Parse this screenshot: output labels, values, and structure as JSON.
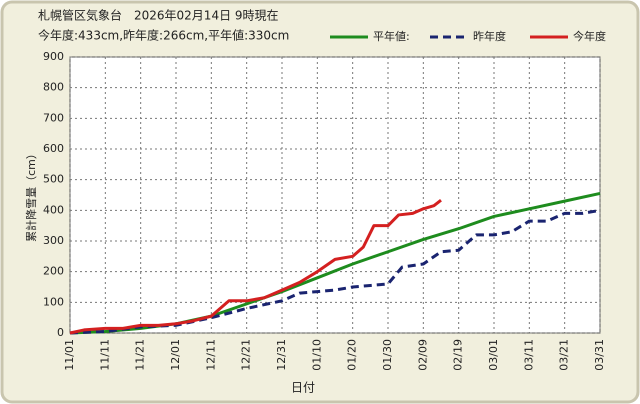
{
  "chart_data": {
    "type": "line",
    "title": "札幌管区気象台　2026年02月14日 9時現在",
    "subtitle": "今年度:433cm,昨年度:266cm,平年値:330cm",
    "x_label": "日付",
    "y_label": "累計降雪量（cm）",
    "xlim": [
      "11/01",
      "03/31"
    ],
    "xticks": [
      "11/01",
      "11/11",
      "11/21",
      "12/01",
      "12/11",
      "12/21",
      "12/31",
      "01/10",
      "01/20",
      "01/30",
      "02/09",
      "02/19",
      "03/01",
      "03/11",
      "03/21",
      "03/31"
    ],
    "ylim": [
      0,
      900
    ],
    "yticks": [
      0,
      100,
      200,
      300,
      400,
      500,
      600,
      700,
      800,
      900
    ],
    "grid": true,
    "series": [
      {
        "name": "平年値:",
        "color": "#1e8c1e",
        "dash": false,
        "x": [
          "11/01",
          "11/11",
          "11/21",
          "12/01",
          "12/11",
          "12/21",
          "12/31",
          "01/10",
          "01/20",
          "01/30",
          "02/09",
          "02/19",
          "03/01",
          "03/11",
          "03/21",
          "03/31"
        ],
        "values": [
          0,
          5,
          15,
          30,
          55,
          95,
          135,
          180,
          225,
          265,
          305,
          340,
          380,
          405,
          430,
          455
        ]
      },
      {
        "name": "昨年度",
        "color": "#1a2470",
        "dash": true,
        "x": [
          "11/01",
          "11/11",
          "11/21",
          "12/01",
          "12/11",
          "12/21",
          "12/31",
          "01/05",
          "01/10",
          "01/15",
          "01/20",
          "01/25",
          "01/30",
          "02/03",
          "02/09",
          "02/14",
          "02/19",
          "02/24",
          "03/01",
          "03/06",
          "03/11",
          "03/16",
          "03/21",
          "03/26",
          "03/31"
        ],
        "values": [
          0,
          5,
          20,
          25,
          50,
          80,
          105,
          130,
          135,
          140,
          150,
          155,
          160,
          215,
          225,
          265,
          270,
          320,
          320,
          330,
          365,
          365,
          390,
          390,
          400
        ]
      },
      {
        "name": "今年度",
        "color": "#d42020",
        "dash": false,
        "x": [
          "11/01",
          "11/05",
          "11/11",
          "11/16",
          "11/21",
          "11/26",
          "12/01",
          "12/06",
          "12/11",
          "12/16",
          "12/21",
          "12/26",
          "12/31",
          "01/05",
          "01/10",
          "01/15",
          "01/20",
          "01/23",
          "01/26",
          "01/30",
          "02/02",
          "02/06",
          "02/09",
          "02/12",
          "02/14"
        ],
        "values": [
          0,
          10,
          15,
          15,
          25,
          25,
          30,
          40,
          55,
          105,
          105,
          115,
          140,
          165,
          200,
          240,
          250,
          280,
          350,
          350,
          385,
          390,
          405,
          415,
          433
        ]
      }
    ]
  }
}
